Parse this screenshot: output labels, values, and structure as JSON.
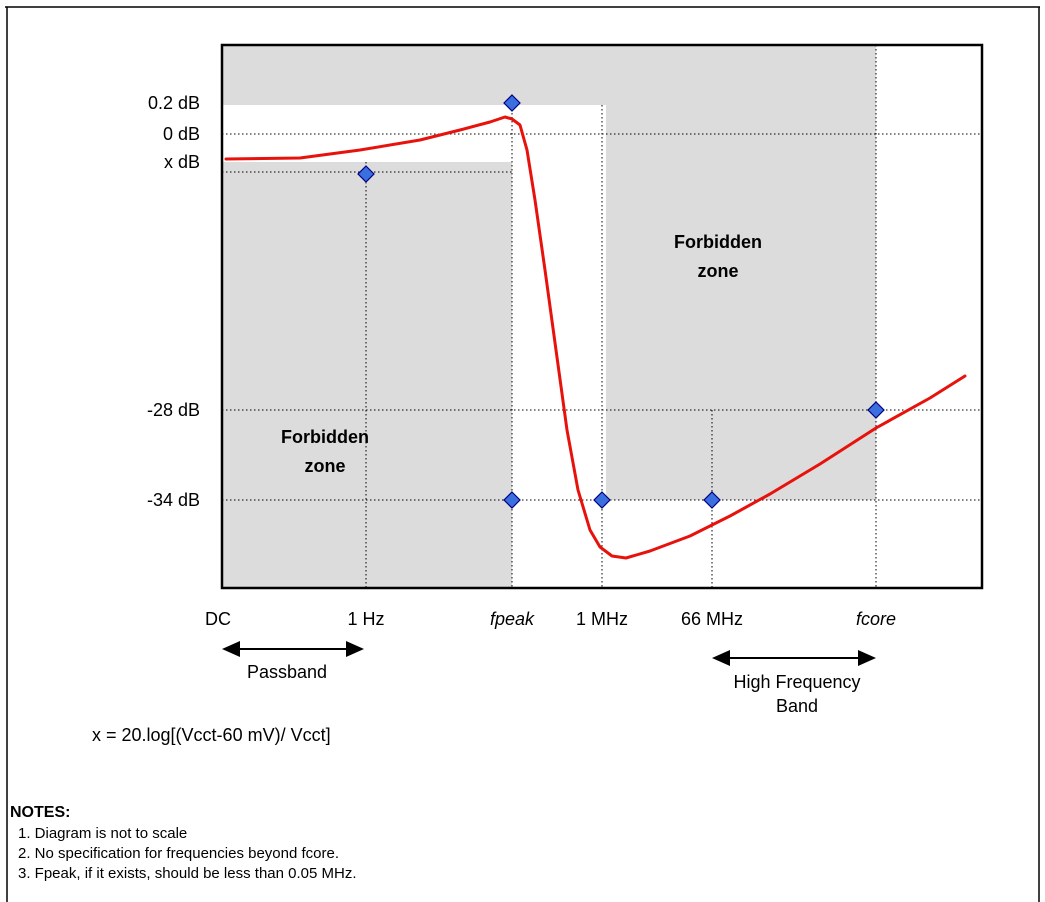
{
  "chart_data": {
    "type": "line",
    "title": "",
    "xlabel": "",
    "ylabel": "",
    "x_categories": [
      "DC",
      "1 Hz",
      "fpeak",
      "1 MHz",
      "66 MHz",
      "fcore"
    ],
    "x_categories_italic": [
      false,
      false,
      true,
      false,
      false,
      true
    ],
    "y_ticks": [
      {
        "label": "0.2 dB",
        "value": 0.2
      },
      {
        "label": "0 dB",
        "value": 0
      },
      {
        "label": "x dB",
        "value": -0.54
      },
      {
        "label": "-28 dB",
        "value": -28
      },
      {
        "label": "-34 dB",
        "value": -34
      }
    ],
    "spec_points": [
      {
        "x": "1 Hz",
        "y": "x dB"
      },
      {
        "x": "fpeak",
        "y": "0.2 dB"
      },
      {
        "x": "fpeak",
        "y": "-34 dB"
      },
      {
        "x": "1 MHz",
        "y": "-34 dB"
      },
      {
        "x": "66 MHz",
        "y": "-34 dB"
      },
      {
        "x": "fcore",
        "y": "-28 dB"
      }
    ],
    "series": [
      {
        "color": "#e8120c",
        "note": "response curve (diagram not to scale)"
      }
    ],
    "zones": [
      {
        "label_line1": "Forbidden",
        "label_line2": "zone",
        "position": "upper-right"
      },
      {
        "label_line1": "Forbidden",
        "label_line2": "zone",
        "position": "lower-left"
      }
    ],
    "grid": true,
    "colors": {
      "zone": "#dcdcdc",
      "curve": "#e8120c",
      "marker": "#3b6fe0",
      "marker_edge": "#000080",
      "grid": "#000000"
    }
  },
  "bands": {
    "passband": "Passband",
    "high_frequency_line1": "High Frequency",
    "high_frequency_line2": "Band"
  },
  "formula": "x = 20.log[(Vcct-60 mV)/ Vcct]",
  "notes": {
    "title": "NOTES:",
    "items": [
      "1. Diagram is not to scale",
      "2. No specification for frequencies beyond fcore.",
      "3. Fpeak, if it exists, should be less than 0.05 MHz."
    ]
  }
}
